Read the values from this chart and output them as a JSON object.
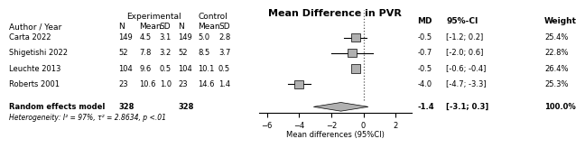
{
  "title": "Mean Difference in PVR",
  "xlabel": "Mean differences (95%CI)",
  "studies": [
    {
      "author": "Carta 2022",
      "exp_n": "149",
      "exp_mean": "4.5",
      "exp_sd": "3.1",
      "ctrl_n": "149",
      "ctrl_mean": "5.0",
      "ctrl_sd": "2.8",
      "md": -0.5,
      "ci_lo": -1.2,
      "ci_hi": 0.2,
      "weight": 25.4,
      "weight_str": "25.4%",
      "md_str": "-0.5",
      "ci_str": "[-1.2; 0.2]"
    },
    {
      "author": "Shigetishi 2022",
      "exp_n": "52",
      "exp_mean": "7.8",
      "exp_sd": "3.2",
      "ctrl_n": "52",
      "ctrl_mean": "8.5",
      "ctrl_sd": "3.7",
      "md": -0.7,
      "ci_lo": -2.0,
      "ci_hi": 0.6,
      "weight": 22.8,
      "weight_str": "22.8%",
      "md_str": "-0.7",
      "ci_str": "[-2.0; 0.6]"
    },
    {
      "author": "Leuchte 2013",
      "exp_n": "104",
      "exp_mean": "9.6",
      "exp_sd": "0.5",
      "ctrl_n": "104",
      "ctrl_mean": "10.1",
      "ctrl_sd": "0.5",
      "md": -0.5,
      "ci_lo": -0.6,
      "ci_hi": -0.4,
      "weight": 26.4,
      "weight_str": "26.4%",
      "md_str": "-0.5",
      "ci_str": "[-0.6; -0.4]"
    },
    {
      "author": "Roberts 2001",
      "exp_n": "23",
      "exp_mean": "10.6",
      "exp_sd": "1.0",
      "ctrl_n": "23",
      "ctrl_mean": "14.6",
      "ctrl_sd": "1.4",
      "md": -4.0,
      "ci_lo": -4.7,
      "ci_hi": -3.3,
      "weight": 25.3,
      "weight_str": "25.3%",
      "md_str": "-4.0",
      "ci_str": "[-4.7; -3.3]"
    }
  ],
  "pooled": {
    "md": -1.4,
    "ci_lo": -3.1,
    "ci_hi": 0.3,
    "md_str": "-1.4",
    "ci_str": "[-3.1; 0.3]",
    "weight_str": "100.0%",
    "exp_n": "328",
    "ctrl_n": "328"
  },
  "heterogeneity": "Heterogeneity: I² = 97%, τ² = 2.8634, p <.01",
  "random_effects_label": "Random effects model",
  "xlim": [
    -6.5,
    3
  ],
  "xticks": [
    -6,
    -4,
    -2,
    0,
    2
  ],
  "bg_color": "#ffffff",
  "box_color": "#b0b0b0",
  "diamond_color": "#b0b0b0",
  "text_color": "#000000",
  "line_color": "#000000",
  "fontsize": 6.0,
  "fontsize_title": 8.0,
  "fontsize_header": 6.5
}
